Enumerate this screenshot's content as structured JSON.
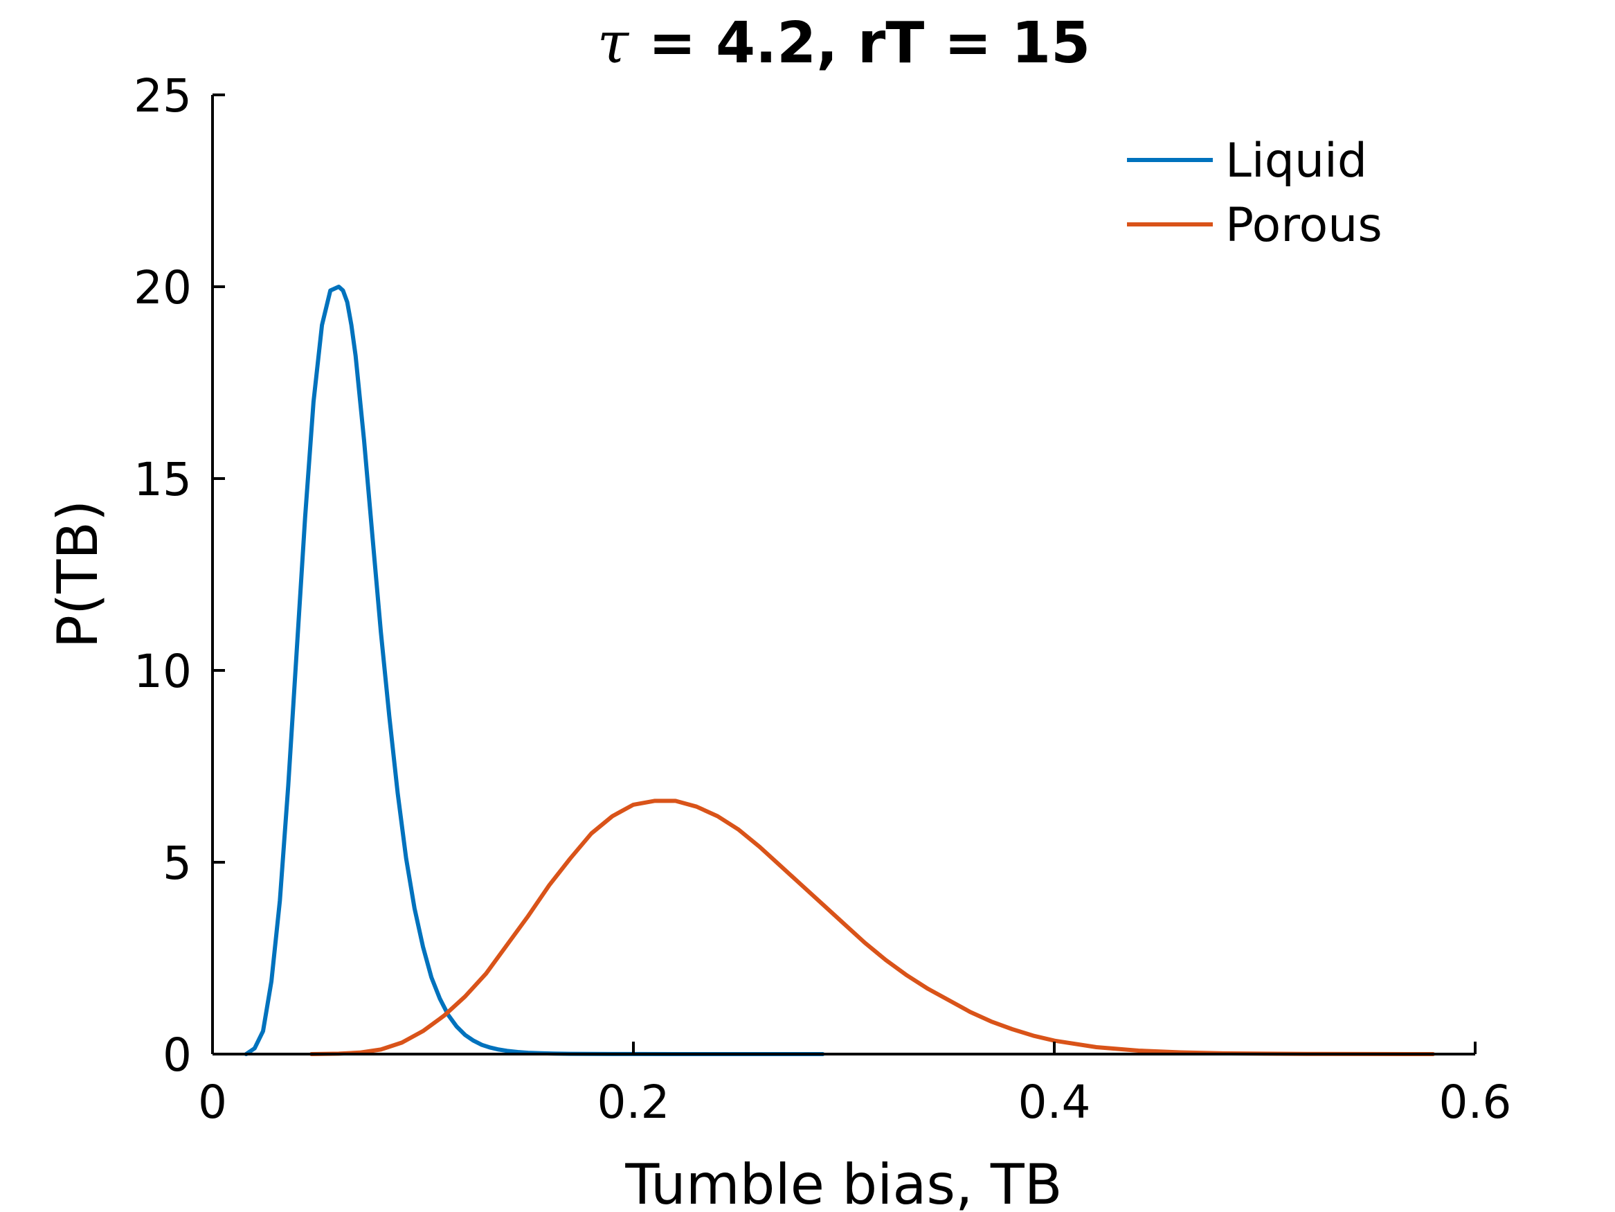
{
  "chart_data": {
    "type": "line",
    "title": {
      "symbol": "τ",
      "rest": " = 4.2, rT = 15"
    },
    "xlabel": "Tumble bias, TB",
    "ylabel": "P(TB)",
    "xlim": [
      0,
      0.6
    ],
    "ylim": [
      0,
      25
    ],
    "xticks": [
      0,
      0.2,
      0.4,
      0.6
    ],
    "xtick_labels": [
      "0",
      "0.2",
      "0.4",
      "0.6"
    ],
    "yticks": [
      0,
      5,
      10,
      15,
      20,
      25
    ],
    "ytick_labels": [
      "0",
      "5",
      "10",
      "15",
      "20",
      "25"
    ],
    "grid": false,
    "legend_position": "top-right",
    "series": [
      {
        "name": "Liquid",
        "color": "#0072BD",
        "x": [
          0.016,
          0.02,
          0.024,
          0.028,
          0.032,
          0.036,
          0.04,
          0.044,
          0.048,
          0.052,
          0.056,
          0.06,
          0.062,
          0.064,
          0.066,
          0.068,
          0.072,
          0.076,
          0.08,
          0.084,
          0.088,
          0.092,
          0.096,
          0.1,
          0.104,
          0.108,
          0.112,
          0.116,
          0.12,
          0.124,
          0.128,
          0.132,
          0.136,
          0.14,
          0.145,
          0.15,
          0.156,
          0.162,
          0.17,
          0.18,
          0.19,
          0.2,
          0.22,
          0.24,
          0.26,
          0.29
        ],
        "y": [
          0.0,
          0.15,
          0.6,
          1.9,
          4.0,
          7.0,
          10.5,
          14.0,
          17.0,
          19.0,
          19.9,
          20.0,
          19.9,
          19.6,
          19.0,
          18.2,
          16.0,
          13.5,
          11.0,
          8.8,
          6.8,
          5.1,
          3.8,
          2.8,
          2.0,
          1.45,
          1.02,
          0.72,
          0.5,
          0.35,
          0.24,
          0.17,
          0.12,
          0.085,
          0.055,
          0.035,
          0.022,
          0.014,
          0.008,
          0.004,
          0.002,
          0.001,
          0.0004,
          0.0002,
          0.0001,
          0.0
        ]
      },
      {
        "name": "Porous",
        "color": "#D95319",
        "x": [
          0.047,
          0.06,
          0.07,
          0.08,
          0.09,
          0.1,
          0.11,
          0.12,
          0.13,
          0.14,
          0.15,
          0.16,
          0.17,
          0.18,
          0.19,
          0.2,
          0.21,
          0.22,
          0.23,
          0.24,
          0.25,
          0.26,
          0.27,
          0.28,
          0.29,
          0.3,
          0.31,
          0.32,
          0.33,
          0.34,
          0.35,
          0.36,
          0.37,
          0.38,
          0.39,
          0.4,
          0.42,
          0.44,
          0.46,
          0.48,
          0.5,
          0.52,
          0.55,
          0.58
        ],
        "y": [
          0.0,
          0.01,
          0.04,
          0.12,
          0.3,
          0.6,
          1.0,
          1.5,
          2.1,
          2.85,
          3.6,
          4.4,
          5.1,
          5.75,
          6.2,
          6.5,
          6.6,
          6.6,
          6.45,
          6.2,
          5.85,
          5.4,
          4.9,
          4.4,
          3.9,
          3.4,
          2.9,
          2.45,
          2.05,
          1.7,
          1.4,
          1.1,
          0.85,
          0.65,
          0.48,
          0.35,
          0.18,
          0.09,
          0.045,
          0.02,
          0.01,
          0.005,
          0.002,
          0.0
        ]
      }
    ]
  }
}
